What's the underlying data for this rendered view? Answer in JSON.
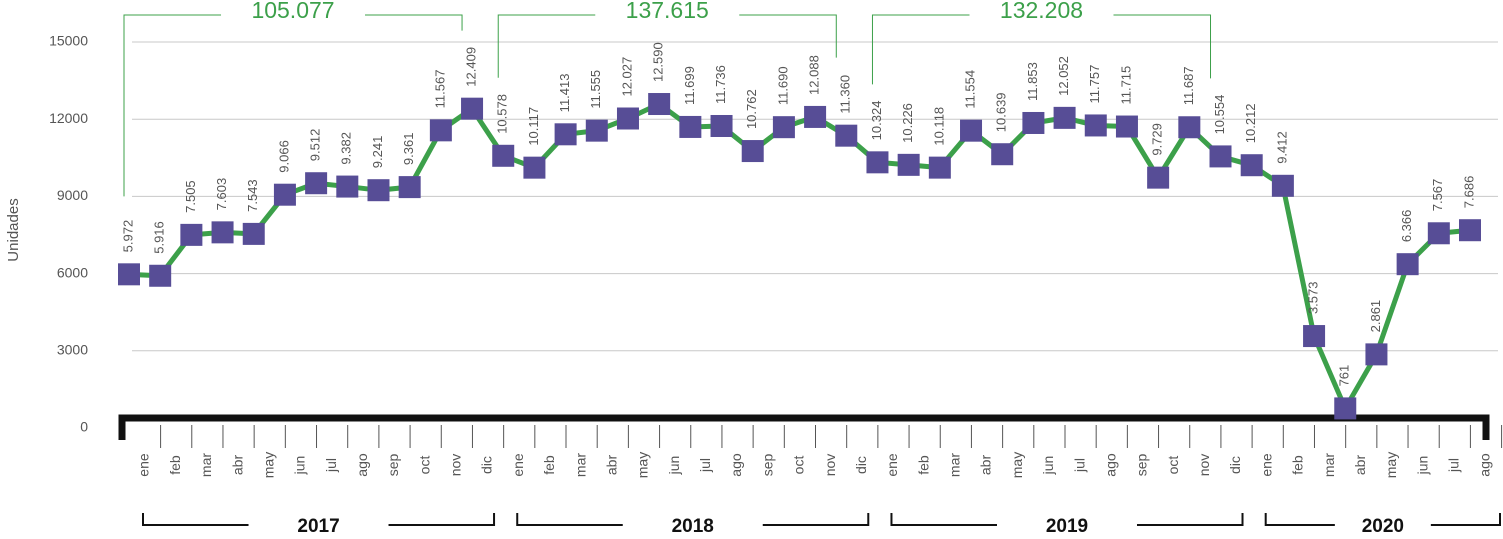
{
  "chart_data": {
    "type": "line",
    "y_label": "Unidades",
    "categories": [
      "ene",
      "feb",
      "mar",
      "abr",
      "may",
      "jun",
      "jul",
      "ago",
      "sep",
      "oct",
      "nov",
      "dic",
      "ene",
      "feb",
      "mar",
      "abr",
      "may",
      "jun",
      "jul",
      "ago",
      "sep",
      "oct",
      "nov",
      "dic",
      "ene",
      "feb",
      "mar",
      "abr",
      "may",
      "jun",
      "jul",
      "ago",
      "sep",
      "oct",
      "nov",
      "dic",
      "ene",
      "feb",
      "mar",
      "abr",
      "may",
      "jun",
      "jul",
      "ago"
    ],
    "values": [
      5972,
      5916,
      7505,
      7603,
      7543,
      9066,
      9512,
      9382,
      9241,
      9361,
      11567,
      12409,
      10578,
      10117,
      11413,
      11555,
      12027,
      12590,
      11699,
      11736,
      10762,
      11690,
      12088,
      11360,
      10324,
      10226,
      10118,
      11554,
      10639,
      11853,
      12052,
      11757,
      11715,
      9729,
      11687,
      10554,
      10212,
      9412,
      3573,
      761,
      2861,
      6366,
      7567,
      7686
    ],
    "value_labels": [
      "5.972",
      "5.916",
      "7.505",
      "7.603",
      "7.543",
      "9.066",
      "9.512",
      "9.382",
      "9.241",
      "9.361",
      "11.567",
      "12.409",
      "10.578",
      "10.117",
      "11.413",
      "11.555",
      "12.027",
      "12.590",
      "11.699",
      "11.736",
      "10.762",
      "11.690",
      "12.088",
      "11.360",
      "10.324",
      "10.226",
      "10.118",
      "11.554",
      "10.639",
      "11.853",
      "12.052",
      "11.757",
      "11.715",
      "9.729",
      "11.687",
      "10.554",
      "10.212",
      "9.412",
      "3.573",
      "761",
      "2.861",
      "6.366",
      "7.567",
      "7.686"
    ],
    "line_color": "#3ca04a",
    "marker_color": "#574d96",
    "ylim": [
      0,
      15000
    ],
    "yticks": [
      0,
      3000,
      6000,
      9000,
      12000,
      15000
    ],
    "grid": true,
    "years": [
      {
        "label": "2017",
        "total": 105077,
        "total_label": "105.077"
      },
      {
        "label": "2018",
        "total": 137615,
        "total_label": "137.615"
      },
      {
        "label": "2019",
        "total": 132208,
        "total_label": "132.208"
      },
      {
        "label": "2020"
      }
    ]
  }
}
